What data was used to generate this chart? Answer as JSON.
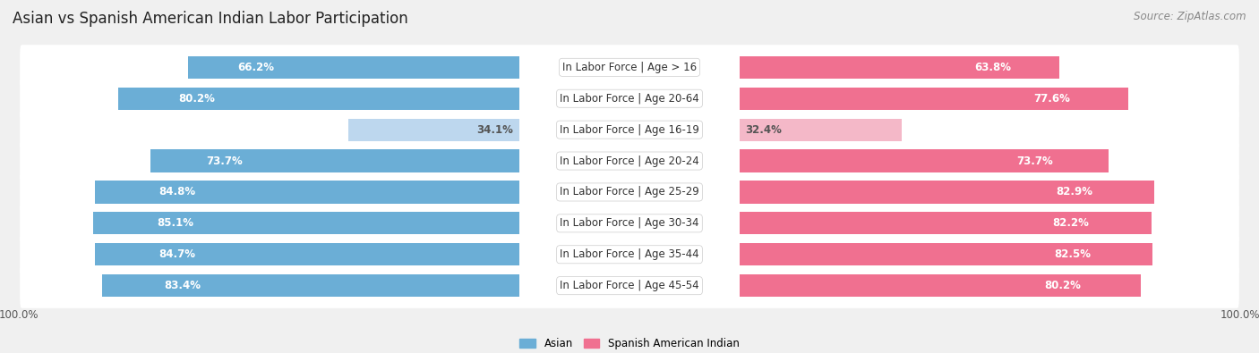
{
  "title": "Asian vs Spanish American Indian Labor Participation",
  "source": "Source: ZipAtlas.com",
  "categories": [
    "In Labor Force | Age > 16",
    "In Labor Force | Age 20-64",
    "In Labor Force | Age 16-19",
    "In Labor Force | Age 20-24",
    "In Labor Force | Age 25-29",
    "In Labor Force | Age 30-34",
    "In Labor Force | Age 35-44",
    "In Labor Force | Age 45-54"
  ],
  "asian_values": [
    66.2,
    80.2,
    34.1,
    73.7,
    84.8,
    85.1,
    84.7,
    83.4
  ],
  "spanish_values": [
    63.8,
    77.6,
    32.4,
    73.7,
    82.9,
    82.2,
    82.5,
    80.2
  ],
  "asian_color": "#6BAED6",
  "asian_color_light": "#BDD7EE",
  "spanish_color": "#F07090",
  "spanish_color_light": "#F4B8C8",
  "bg_color": "#F0F0F0",
  "row_bg": "#E8E8E8",
  "max_val": 100.0,
  "legend_asian": "Asian",
  "legend_spanish": "Spanish American Indian",
  "title_fontsize": 12,
  "label_fontsize": 8.5,
  "value_fontsize": 8.5,
  "source_fontsize": 8.5
}
